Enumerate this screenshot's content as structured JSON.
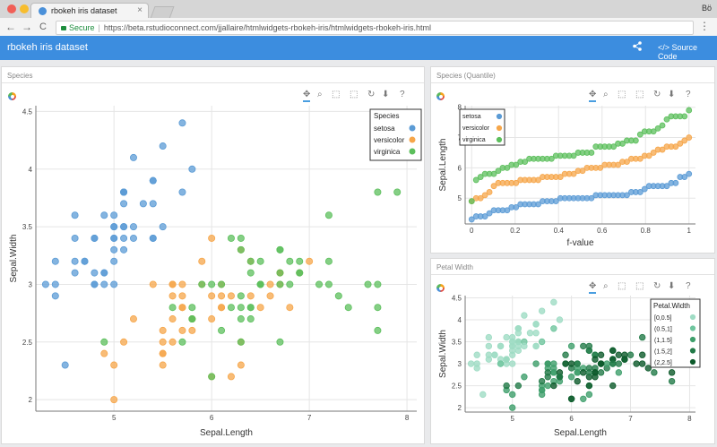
{
  "browser": {
    "tab_title": "rbokeh iris dataset",
    "tab_close": "×",
    "user": "Bö",
    "nav_back": "←",
    "nav_forward": "→",
    "nav_reload": "C",
    "secure_label": "Secure",
    "url": "https://beta.rstudioconnect.com/jjallaire/htmlwidgets-rbokeh-iris/htmlwidgets-rbokeh-iris.html",
    "menu_glyph": "⋮"
  },
  "app": {
    "title": "rbokeh iris dataset",
    "share_icon": "share-icon",
    "source_icon_glyph": "</>",
    "source_label": "Source Code"
  },
  "toolbar_icons": [
    "pan-icon",
    "wheel-zoom-icon",
    "box-zoom-icon",
    "box-select-icon",
    "reset-icon",
    "save-icon",
    "help-icon"
  ],
  "toolbar_glyphs": [
    "✥",
    "⌕",
    "⬚",
    "⬚",
    "↻",
    "⬇",
    "?"
  ],
  "panels": {
    "species": {
      "title": "Species"
    },
    "quantile": {
      "title": "Species (Quantile)"
    },
    "petal": {
      "title": "Petal Width"
    }
  },
  "colors": {
    "setosa": "#5b9bd5",
    "versicolor": "#f6a64a",
    "virginica": "#5cbf5c"
  },
  "chart_data": [
    {
      "type": "scatter",
      "id": "species",
      "xlabel": "Sepal.Length",
      "ylabel": "Sepal.Width",
      "xlim": [
        4.2,
        8.1
      ],
      "ylim": [
        1.9,
        4.55
      ],
      "xticks": [
        "5",
        "6",
        "7",
        "8"
      ],
      "yticks": [
        "2",
        "2.5",
        "3",
        "3.5",
        "4",
        "4.5"
      ],
      "legend_title": "Species",
      "legend_position": "top-right",
      "series": [
        {
          "name": "setosa",
          "points": [
            [
              5.1,
              3.5
            ],
            [
              4.9,
              3
            ],
            [
              4.7,
              3.2
            ],
            [
              4.6,
              3.1
            ],
            [
              5,
              3.6
            ],
            [
              5.4,
              3.9
            ],
            [
              4.6,
              3.4
            ],
            [
              5,
              3.4
            ],
            [
              4.4,
              2.9
            ],
            [
              4.9,
              3.1
            ],
            [
              5.4,
              3.7
            ],
            [
              4.8,
              3.4
            ],
            [
              4.8,
              3
            ],
            [
              4.3,
              3
            ],
            [
              5.8,
              4
            ],
            [
              5.7,
              4.4
            ],
            [
              5.4,
              3.9
            ],
            [
              5.1,
              3.5
            ],
            [
              5.7,
              3.8
            ],
            [
              5.1,
              3.8
            ],
            [
              5.4,
              3.4
            ],
            [
              5.1,
              3.7
            ],
            [
              4.6,
              3.6
            ],
            [
              5.1,
              3.3
            ],
            [
              4.8,
              3.4
            ],
            [
              5,
              3
            ],
            [
              5,
              3.4
            ],
            [
              5.2,
              3.5
            ],
            [
              5.2,
              3.4
            ],
            [
              4.7,
              3.2
            ],
            [
              4.8,
              3.1
            ],
            [
              5.4,
              3.4
            ],
            [
              5.2,
              4.1
            ],
            [
              5.5,
              4.2
            ],
            [
              4.9,
              3.1
            ],
            [
              5,
              3.2
            ],
            [
              5.5,
              3.5
            ],
            [
              4.9,
              3.6
            ],
            [
              4.4,
              3
            ],
            [
              5.1,
              3.4
            ],
            [
              5,
              3.5
            ],
            [
              4.5,
              2.3
            ],
            [
              4.4,
              3.2
            ],
            [
              5,
              3.5
            ],
            [
              5.1,
              3.8
            ],
            [
              4.8,
              3
            ],
            [
              5.1,
              3.8
            ],
            [
              4.6,
              3.2
            ],
            [
              5.3,
              3.7
            ],
            [
              5,
              3.3
            ]
          ]
        },
        {
          "name": "versicolor",
          "points": [
            [
              7,
              3.2
            ],
            [
              6.4,
              3.2
            ],
            [
              6.9,
              3.1
            ],
            [
              5.5,
              2.3
            ],
            [
              6.5,
              2.8
            ],
            [
              5.7,
              2.8
            ],
            [
              6.3,
              3.3
            ],
            [
              4.9,
              2.4
            ],
            [
              6.6,
              2.9
            ],
            [
              5.2,
              2.7
            ],
            [
              5,
              2
            ],
            [
              5.9,
              3
            ],
            [
              6,
              2.2
            ],
            [
              6.1,
              2.9
            ],
            [
              5.6,
              2.9
            ],
            [
              6.7,
              3.1
            ],
            [
              5.6,
              3
            ],
            [
              5.8,
              2.7
            ],
            [
              6.2,
              2.2
            ],
            [
              5.6,
              2.5
            ],
            [
              5.9,
              3.2
            ],
            [
              6.1,
              2.8
            ],
            [
              6.3,
              2.5
            ],
            [
              6.1,
              2.8
            ],
            [
              6.4,
              2.9
            ],
            [
              6.6,
              3
            ],
            [
              6.8,
              2.8
            ],
            [
              6.7,
              3
            ],
            [
              6,
              2.9
            ],
            [
              5.7,
              2.6
            ],
            [
              5.5,
              2.4
            ],
            [
              5.5,
              2.4
            ],
            [
              5.8,
              2.7
            ],
            [
              6,
              2.7
            ],
            [
              5.4,
              3
            ],
            [
              6,
              3.4
            ],
            [
              6.7,
              3.1
            ],
            [
              6.3,
              2.3
            ],
            [
              5.6,
              3
            ],
            [
              5.5,
              2.5
            ],
            [
              5.5,
              2.6
            ],
            [
              6.1,
              3
            ],
            [
              5.8,
              2.6
            ],
            [
              5,
              2.3
            ],
            [
              5.6,
              2.7
            ],
            [
              5.7,
              3
            ],
            [
              5.7,
              2.9
            ],
            [
              6.2,
              2.9
            ],
            [
              5.1,
              2.5
            ],
            [
              5.7,
              2.8
            ]
          ]
        },
        {
          "name": "virginica",
          "points": [
            [
              6.3,
              3.3
            ],
            [
              5.8,
              2.7
            ],
            [
              7.1,
              3
            ],
            [
              6.3,
              2.9
            ],
            [
              6.5,
              3
            ],
            [
              7.6,
              3
            ],
            [
              4.9,
              2.5
            ],
            [
              7.3,
              2.9
            ],
            [
              6.7,
              2.5
            ],
            [
              7.2,
              3.6
            ],
            [
              6.5,
              3.2
            ],
            [
              6.4,
              2.7
            ],
            [
              6.8,
              3
            ],
            [
              5.7,
              2.5
            ],
            [
              5.8,
              2.8
            ],
            [
              6.4,
              3.2
            ],
            [
              6.5,
              3
            ],
            [
              7.7,
              3.8
            ],
            [
              7.7,
              2.6
            ],
            [
              6,
              2.2
            ],
            [
              6.9,
              3.2
            ],
            [
              5.6,
              2.8
            ],
            [
              7.7,
              2.8
            ],
            [
              6.3,
              2.7
            ],
            [
              6.7,
              3.3
            ],
            [
              7.2,
              3.2
            ],
            [
              6.2,
              2.8
            ],
            [
              6.1,
              3
            ],
            [
              6.4,
              2.8
            ],
            [
              7.2,
              3
            ],
            [
              7.4,
              2.8
            ],
            [
              7.9,
              3.8
            ],
            [
              6.4,
              2.8
            ],
            [
              6.3,
              2.8
            ],
            [
              6.1,
              2.6
            ],
            [
              7.7,
              3
            ],
            [
              6.3,
              3.4
            ],
            [
              6.4,
              3.1
            ],
            [
              6,
              3
            ],
            [
              6.9,
              3.1
            ],
            [
              6.7,
              3.1
            ],
            [
              6.9,
              3.1
            ],
            [
              5.8,
              2.7
            ],
            [
              6.8,
              3.2
            ],
            [
              6.7,
              3.3
            ],
            [
              6.7,
              3
            ],
            [
              6.3,
              2.5
            ],
            [
              6.5,
              3
            ],
            [
              6.2,
              3.4
            ],
            [
              5.9,
              3
            ]
          ]
        }
      ]
    },
    {
      "type": "scatter",
      "id": "quantile",
      "xlabel": "f-value",
      "ylabel": "Sepal.Length",
      "xlim": [
        -0.03,
        1.03
      ],
      "ylim": [
        4.15,
        8.05
      ],
      "xticks": [
        "0",
        "0.2",
        "0.4",
        "0.6",
        "0.8",
        "1"
      ],
      "yticks": [
        "5",
        "6",
        "7",
        "8"
      ],
      "legend_position": "top-left",
      "series": [
        {
          "name": "setosa",
          "values": [
            4.3,
            4.4,
            4.4,
            4.4,
            4.5,
            4.6,
            4.6,
            4.6,
            4.6,
            4.7,
            4.7,
            4.8,
            4.8,
            4.8,
            4.8,
            4.8,
            4.9,
            4.9,
            4.9,
            4.9,
            5,
            5,
            5,
            5,
            5,
            5,
            5,
            5,
            5.1,
            5.1,
            5.1,
            5.1,
            5.1,
            5.1,
            5.1,
            5.1,
            5.2,
            5.2,
            5.2,
            5.3,
            5.4,
            5.4,
            5.4,
            5.4,
            5.4,
            5.5,
            5.5,
            5.7,
            5.7,
            5.8
          ]
        },
        {
          "name": "versicolor",
          "values": [
            4.9,
            5,
            5,
            5.1,
            5.2,
            5.4,
            5.5,
            5.5,
            5.5,
            5.5,
            5.5,
            5.6,
            5.6,
            5.6,
            5.6,
            5.6,
            5.7,
            5.7,
            5.7,
            5.7,
            5.7,
            5.8,
            5.8,
            5.8,
            5.9,
            5.9,
            6,
            6,
            6,
            6,
            6.1,
            6.1,
            6.1,
            6.1,
            6.2,
            6.2,
            6.3,
            6.3,
            6.3,
            6.4,
            6.4,
            6.5,
            6.6,
            6.6,
            6.7,
            6.7,
            6.7,
            6.8,
            6.9,
            7
          ]
        },
        {
          "name": "virginica",
          "values": [
            4.9,
            5.6,
            5.7,
            5.8,
            5.8,
            5.8,
            5.9,
            6,
            6,
            6.1,
            6.1,
            6.2,
            6.2,
            6.3,
            6.3,
            6.3,
            6.3,
            6.3,
            6.3,
            6.4,
            6.4,
            6.4,
            6.4,
            6.4,
            6.5,
            6.5,
            6.5,
            6.5,
            6.7,
            6.7,
            6.7,
            6.7,
            6.7,
            6.8,
            6.8,
            6.9,
            6.9,
            6.9,
            7.1,
            7.2,
            7.2,
            7.2,
            7.3,
            7.4,
            7.6,
            7.7,
            7.7,
            7.7,
            7.7,
            7.9
          ]
        }
      ]
    },
    {
      "type": "scatter",
      "id": "petal",
      "xlabel": "Sepal.Length",
      "ylabel": "Sepal.Width",
      "xlim": [
        4.2,
        8.1
      ],
      "ylim": [
        1.9,
        4.55
      ],
      "xticks": [
        "5",
        "6",
        "7",
        "8"
      ],
      "yticks": [
        "2",
        "2.5",
        "3",
        "3.5",
        "4",
        "4.5"
      ],
      "legend_title": "Petal.Width",
      "legend_position": "top-right",
      "series": [
        {
          "name": "[0,0.5]",
          "color": "#9fdcc4"
        },
        {
          "name": "(0.5,1]",
          "color": "#6fc59e"
        },
        {
          "name": "(1,1.5]",
          "color": "#3f9f6c"
        },
        {
          "name": "(1.5,2]",
          "color": "#237a48"
        },
        {
          "name": "(2,2.5]",
          "color": "#0d5a2b"
        }
      ]
    }
  ]
}
